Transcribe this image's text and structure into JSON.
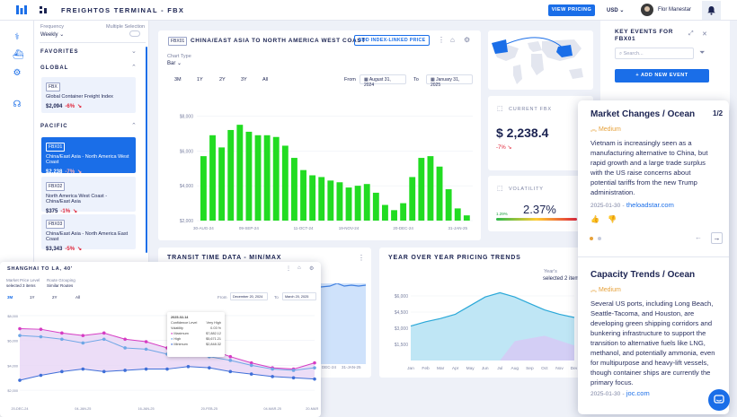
{
  "header": {
    "title": "FREIGHTOS TERMINAL - FBX",
    "view_pricing": "VIEW PRICING",
    "currency": "USD",
    "user_name": "Flor Manestar"
  },
  "sidebar": {
    "frequency_label": "Frequency",
    "frequency_value": "Weekly",
    "multiple_selection_label": "Multiple Selection",
    "favorites": "FAVORITES",
    "global": "GLOBAL",
    "pacific": "PACIFIC",
    "items": [
      {
        "code": "FBX",
        "name": "Global Container Freight Index",
        "price": "$2,094",
        "change": "-6%"
      },
      {
        "code": "FBX01",
        "name": "China/East Asia - North America West Coast",
        "price": "$2,238",
        "change": "-7%"
      },
      {
        "code": "FBX02",
        "name": "North America West Coast - China/East Asia",
        "price": "$375",
        "change": "-1%"
      },
      {
        "code": "FBX03",
        "name": "China/East Asia - North America East Coast",
        "price": "$3,343",
        "change": "-5%"
      }
    ]
  },
  "main_chart": {
    "code": "FBX01",
    "title": "CHINA/EAST ASIA TO NORTH AMERICA WEST COAST",
    "add_button": "ADD INDEX-LINKED PRICE",
    "chart_type_label": "Chart Type",
    "chart_type_value": "Bar",
    "tabs": [
      "3M",
      "1Y",
      "2Y",
      "3Y",
      "All"
    ],
    "from_label": "From",
    "from_date": "August 31, 2024",
    "to_label": "To",
    "to_date": "January 31, 2025"
  },
  "chart_data": [
    {
      "type": "bar",
      "title": "CHINA/EAST ASIA TO NORTH AMERICA WEST COAST",
      "y_ticks": [
        "$8,000",
        "$6,000",
        "$4,000",
        "$2,000"
      ],
      "x_ticks": [
        "30-AUG-24",
        "09-SEP-24",
        "11-OCT-24",
        "19-NOV-24",
        "20-DEC-24",
        "31-JAN-25"
      ],
      "ylim": [
        2000,
        9000
      ],
      "values": [
        5700,
        6900,
        6200,
        7200,
        7500,
        7100,
        6900,
        6900,
        6800,
        6300,
        5600,
        4900,
        4600,
        4500,
        4300,
        4200,
        3900,
        4000,
        4100,
        3600,
        2900,
        2600,
        3000,
        4500,
        5600,
        5700,
        5100,
        3800,
        2700,
        2300
      ]
    },
    {
      "type": "line",
      "title": "SHANGHAI TO LA, 40'",
      "series": [
        {
          "name": "Maximum",
          "color": "#d63cc3",
          "values": [
            6950,
            6900,
            6600,
            6400,
            6600,
            6100,
            5900,
            5400,
            5300,
            5300,
            4700,
            4200,
            3800,
            3700,
            4200
          ]
        },
        {
          "name": "High",
          "color": "#6fa7e6",
          "values": [
            6400,
            6300,
            6100,
            5800,
            6100,
            5400,
            5300,
            4900,
            4800,
            4700,
            4400,
            4000,
            3700,
            3600,
            3800
          ]
        },
        {
          "name": "Minimum",
          "color": "#3f6fd8",
          "values": [
            2800,
            3200,
            3500,
            3700,
            3500,
            3600,
            3700,
            3700,
            3900,
            3800,
            3500,
            3300,
            3100,
            3000,
            2900
          ]
        }
      ]
    },
    {
      "type": "area",
      "title": "YEAR OVER YEAR PRICING TRENDS",
      "categories": [
        "Jan",
        "Feb",
        "Mar",
        "Apr",
        "May",
        "Jun",
        "Jul",
        "Aug",
        "Sep",
        "Oct",
        "Nov",
        "Dec"
      ],
      "y_ticks": [
        "$6,000",
        "$4,500",
        "$3,000",
        "$1,500"
      ],
      "values": [
        3200,
        3600,
        3900,
        4300,
        5100,
        5900,
        6300,
        5900,
        5300,
        4700,
        4300,
        4000
      ]
    }
  ],
  "map_panel": {},
  "current_fbx": {
    "label": "CURRENT FBX",
    "value": "$ 2,238.4",
    "change": "-7%"
  },
  "volatility": {
    "label": "VOLATILITY",
    "value": "2.37%",
    "low": "1.29%",
    "high": "7.08%"
  },
  "transit": {
    "title": "TRANSIT TIME DATA - MIN/MAX",
    "x_ticks": [
      "DEC-24",
      "31-JAN-25"
    ]
  },
  "yoy": {
    "title": "YEAR OVER YEAR PRICING TRENDS",
    "years_label": "Year's",
    "years_value": "selected 2 items"
  },
  "key_events": {
    "title": "KEY EVENTS FOR FBX01",
    "search_placeholder": "Search...",
    "add_button": "ADD NEW EVENT"
  },
  "event_popup": {
    "counter": "1/2",
    "events": [
      {
        "title": "Market Changes / Ocean",
        "severity": "Medium",
        "body": "Vietnam is increasingly seen as a manufacturing alternative to China, but rapid growth and a large trade surplus with the US raise concerns about potential tariffs from the new Trump administration.",
        "date": "2025-01-30",
        "source": "theloadstar.com"
      },
      {
        "title": "Capacity Trends / Ocean",
        "severity": "Medium",
        "body": "Several US ports, including Long Beach, Seattle-Tacoma, and Houston, are developing green shipping corridors and bunkering infrastructure to support the transition to alternative fuels like LNG, methanol, and potentially ammonia, even for multipurpose and heavy-lift vessels, though container ships are currently the primary focus.",
        "date": "2025-01-30",
        "source": "joc.com"
      }
    ]
  },
  "float_chart": {
    "title": "SHANGHAI TO LA, 40'",
    "filter1_label": "Market Price Level",
    "filter1_value": "selected 3 items",
    "filter2_label": "Route Grouping",
    "filter2_value": "Similar Routes",
    "tabs": [
      "3M",
      "1Y",
      "2Y",
      "All"
    ],
    "from_label": "From",
    "from_date": "December 20, 2024",
    "to_label": "To",
    "to_date": "March 20, 2025",
    "y_ticks": [
      "$8,000",
      "$6,000",
      "$4,000",
      "$2,000"
    ],
    "x_ticks": [
      "20-DEC-24",
      "04-JAN-25",
      "16-JAN-25",
      "20-FEB-25",
      "04-MAR-25",
      "20-MAR-25"
    ],
    "tooltip": {
      "date": "2025-02-14",
      "confidence_label": "Confidence Level",
      "confidence_value": "Very High",
      "volatility_label": "Volatility",
      "volatility_value": "0.03 %",
      "rows": [
        {
          "name": "Maximum",
          "value": "$7,882.12"
        },
        {
          "name": "High",
          "value": "$5,671.21"
        },
        {
          "name": "Minimum",
          "value": "$2,848.32"
        }
      ]
    }
  }
}
